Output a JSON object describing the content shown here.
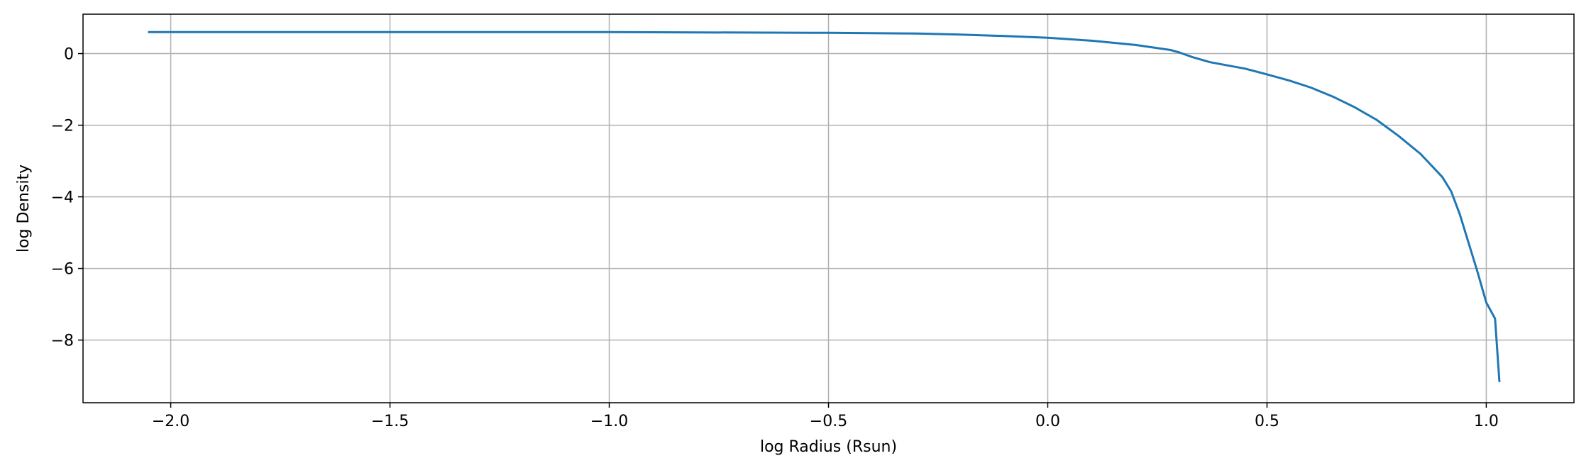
{
  "chart_data": {
    "type": "line",
    "title": "",
    "xlabel": "log Radius (Rsun)",
    "ylabel": "log Density",
    "xlim": [
      -2.2,
      1.2
    ],
    "ylim": [
      -9.75,
      1.1
    ],
    "x_ticks": [
      -2.0,
      -1.5,
      -1.0,
      -0.5,
      0.0,
      0.5,
      1.0
    ],
    "x_tick_labels": [
      "−2.0",
      "−1.5",
      "−1.0",
      "−0.5",
      "0.0",
      "0.5",
      "1.0"
    ],
    "y_ticks": [
      0,
      -2,
      -4,
      -6,
      -8
    ],
    "y_tick_labels": [
      "0",
      "−2",
      "−4",
      "−6",
      "−8"
    ],
    "grid": true,
    "series": [
      {
        "color": "#1f77b4",
        "x": [
          -2.05,
          -1.5,
          -1.0,
          -0.5,
          -0.3,
          -0.2,
          -0.1,
          0.0,
          0.1,
          0.2,
          0.28,
          0.3,
          0.33,
          0.37,
          0.45,
          0.5,
          0.55,
          0.6,
          0.65,
          0.7,
          0.75,
          0.8,
          0.85,
          0.9,
          0.92,
          0.94,
          0.96,
          0.98,
          1.0,
          1.02,
          1.03
        ],
        "y": [
          0.6,
          0.6,
          0.6,
          0.58,
          0.56,
          0.53,
          0.49,
          0.44,
          0.36,
          0.24,
          0.1,
          0.03,
          -0.1,
          -0.24,
          -0.42,
          -0.58,
          -0.75,
          -0.95,
          -1.2,
          -1.5,
          -1.85,
          -2.3,
          -2.8,
          -3.45,
          -3.85,
          -4.5,
          -5.3,
          -6.1,
          -6.95,
          -7.4,
          -9.15
        ]
      }
    ]
  }
}
